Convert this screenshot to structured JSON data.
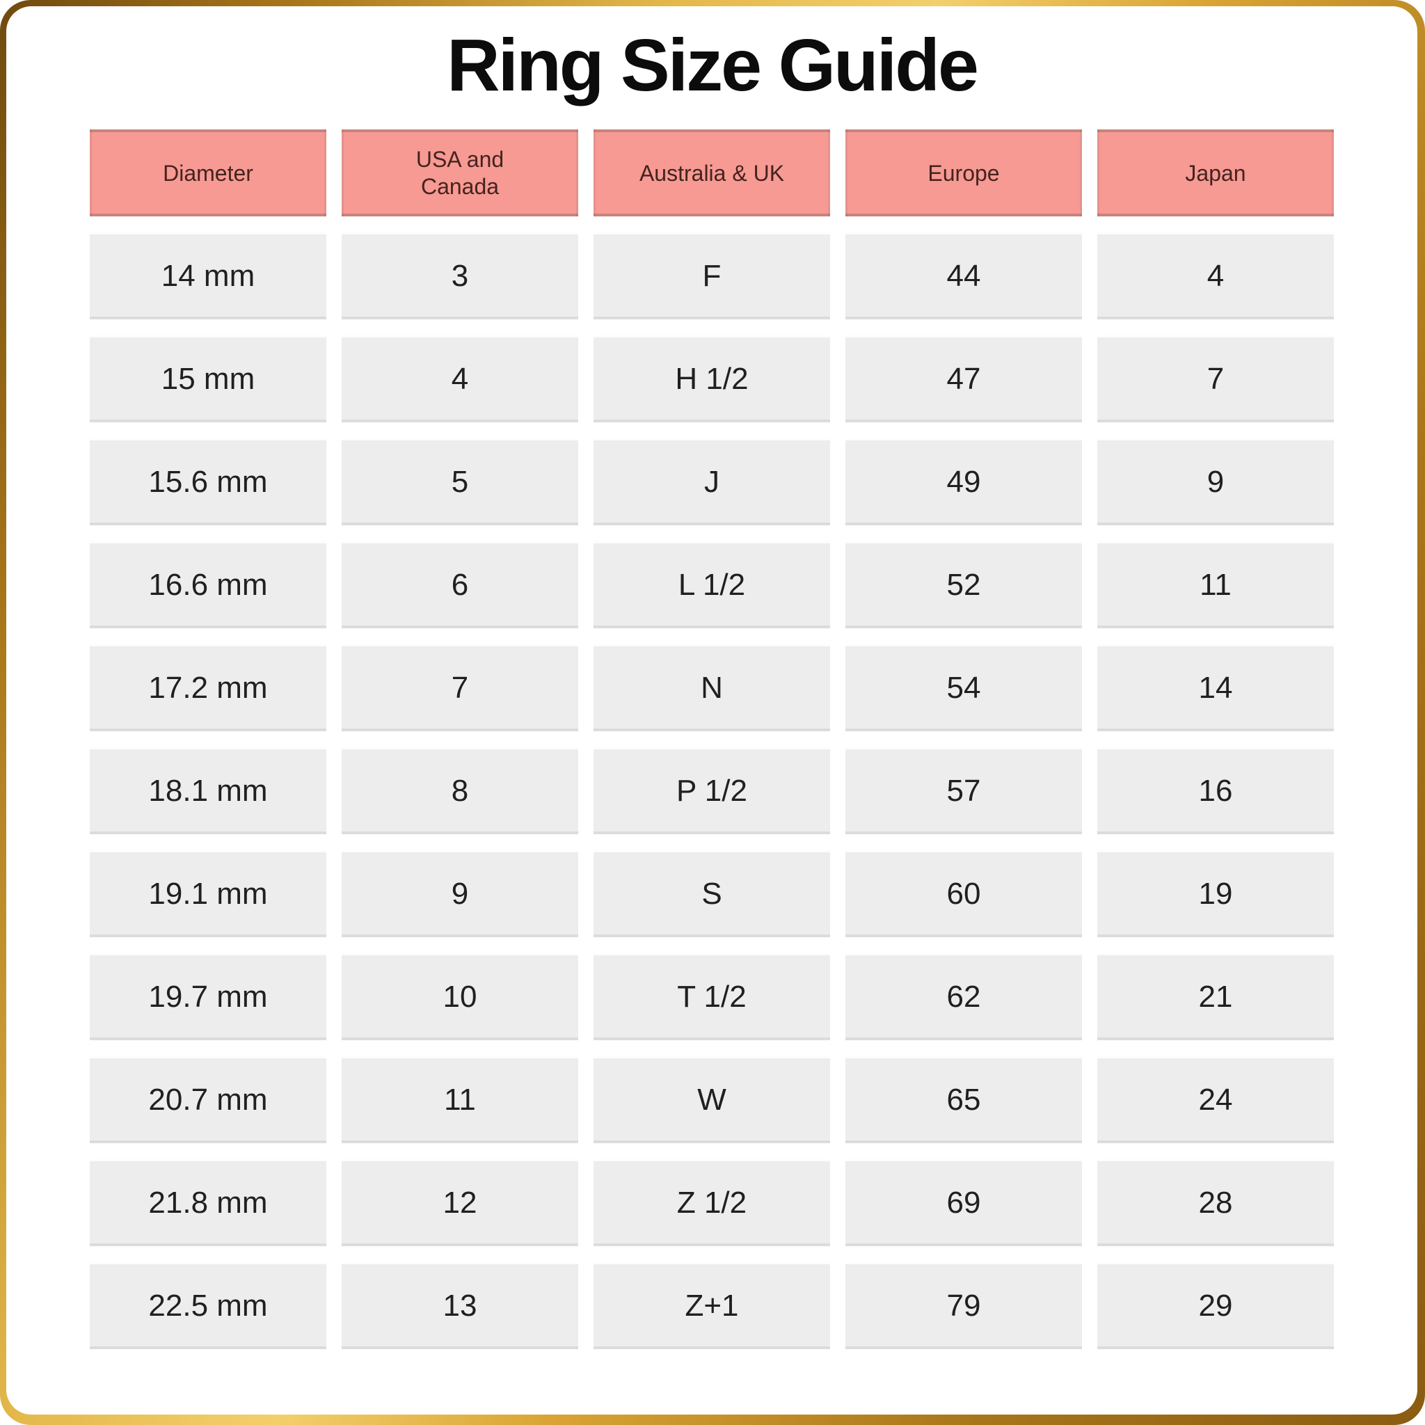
{
  "title": "Ring Size Guide",
  "colors": {
    "frame_gold_dark": "#6f4a0e",
    "frame_gold_light": "#f3cf6b",
    "header_bg": "#f69a93",
    "header_text": "#45231f",
    "cell_bg": "#ededed",
    "cell_text": "#202020",
    "title_text": "#0c0c0c"
  },
  "chart_data": {
    "type": "table",
    "title": "Ring Size Guide",
    "columns": [
      "Diameter",
      "USA and Canada",
      "Australia & UK",
      "Europe",
      "Japan"
    ],
    "rows": [
      [
        "14 mm",
        "3",
        "F",
        "44",
        "4"
      ],
      [
        "15 mm",
        "4",
        "H 1/2",
        "47",
        "7"
      ],
      [
        "15.6 mm",
        "5",
        "J",
        "49",
        "9"
      ],
      [
        "16.6 mm",
        "6",
        "L 1/2",
        "52",
        "11"
      ],
      [
        "17.2 mm",
        "7",
        "N",
        "54",
        "14"
      ],
      [
        "18.1 mm",
        "8",
        "P 1/2",
        "57",
        "16"
      ],
      [
        "19.1 mm",
        "9",
        "S",
        "60",
        "19"
      ],
      [
        "19.7 mm",
        "10",
        "T 1/2",
        "62",
        "21"
      ],
      [
        "20.7 mm",
        "11",
        "W",
        "65",
        "24"
      ],
      [
        "21.8 mm",
        "12",
        "Z 1/2",
        "69",
        "28"
      ],
      [
        "22.5 mm",
        "13",
        "Z+1",
        "79",
        "29"
      ]
    ]
  }
}
